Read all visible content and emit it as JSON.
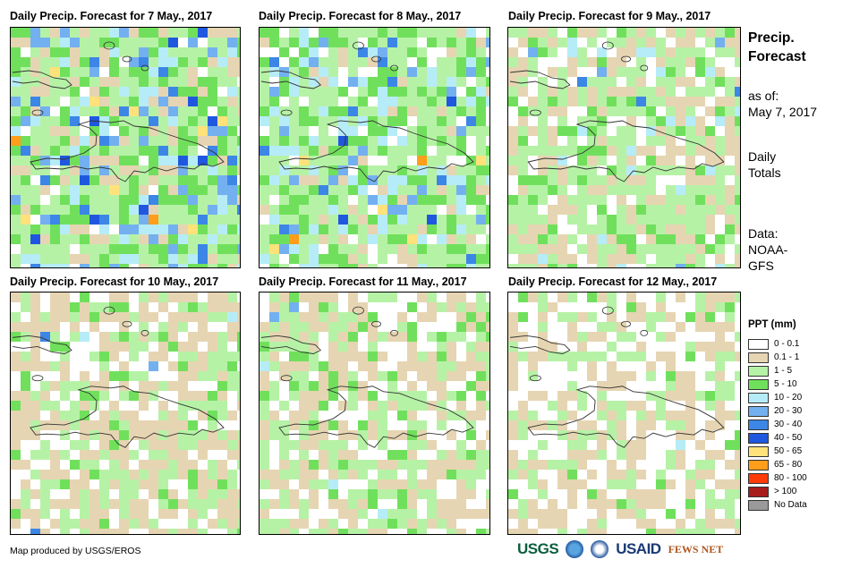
{
  "panels": [
    {
      "title": "Daily Precip. Forecast for 7 May., 2017",
      "day": 0
    },
    {
      "title": "Daily Precip. Forecast for 8 May., 2017",
      "day": 1
    },
    {
      "title": "Daily Precip. Forecast for 9 May., 2017",
      "day": 2
    },
    {
      "title": "Daily Precip. Forecast for 10 May., 2017",
      "day": 3
    },
    {
      "title": "Daily Precip. Forecast for 11 May., 2017",
      "day": 4
    },
    {
      "title": "Daily Precip. Forecast for 12 May., 2017",
      "day": 5
    }
  ],
  "side": {
    "heading_line1": "Precip.",
    "heading_line2": "Forecast",
    "asof_line1": "as of:",
    "asof_line2": "May 7, 2017",
    "totals_line1": "Daily",
    "totals_line2": "Totals",
    "data_line1": "Data:",
    "data_line2": "NOAA-",
    "data_line3": "GFS"
  },
  "legend": {
    "title": "PPT (mm)",
    "items": [
      {
        "label": "0 - 0.1",
        "color": "#ffffff"
      },
      {
        "label": "0.1 - 1",
        "color": "#e6d5b2"
      },
      {
        "label": "1 - 5",
        "color": "#b6f2a6"
      },
      {
        "label": "5 - 10",
        "color": "#70e05c"
      },
      {
        "label": "10 - 20",
        "color": "#b6ecf7"
      },
      {
        "label": "20 - 30",
        "color": "#73b0ef"
      },
      {
        "label": "30 - 40",
        "color": "#3c86e6"
      },
      {
        "label": "40 - 50",
        "color": "#1f58df"
      },
      {
        "label": "50 - 65",
        "color": "#ffe27a"
      },
      {
        "label": "65 - 80",
        "color": "#ff9e1a"
      },
      {
        "label": "80 - 100",
        "color": "#ff3b0a"
      },
      {
        "label": "> 100",
        "color": "#a81c1c"
      },
      {
        "label": "No Data",
        "color": "#9a9a9a"
      }
    ]
  },
  "credit": "Map produced by USGS/EROS",
  "logos": {
    "usgs": "USGS",
    "usaid": "USAID",
    "fews": "FEWS NET"
  }
}
